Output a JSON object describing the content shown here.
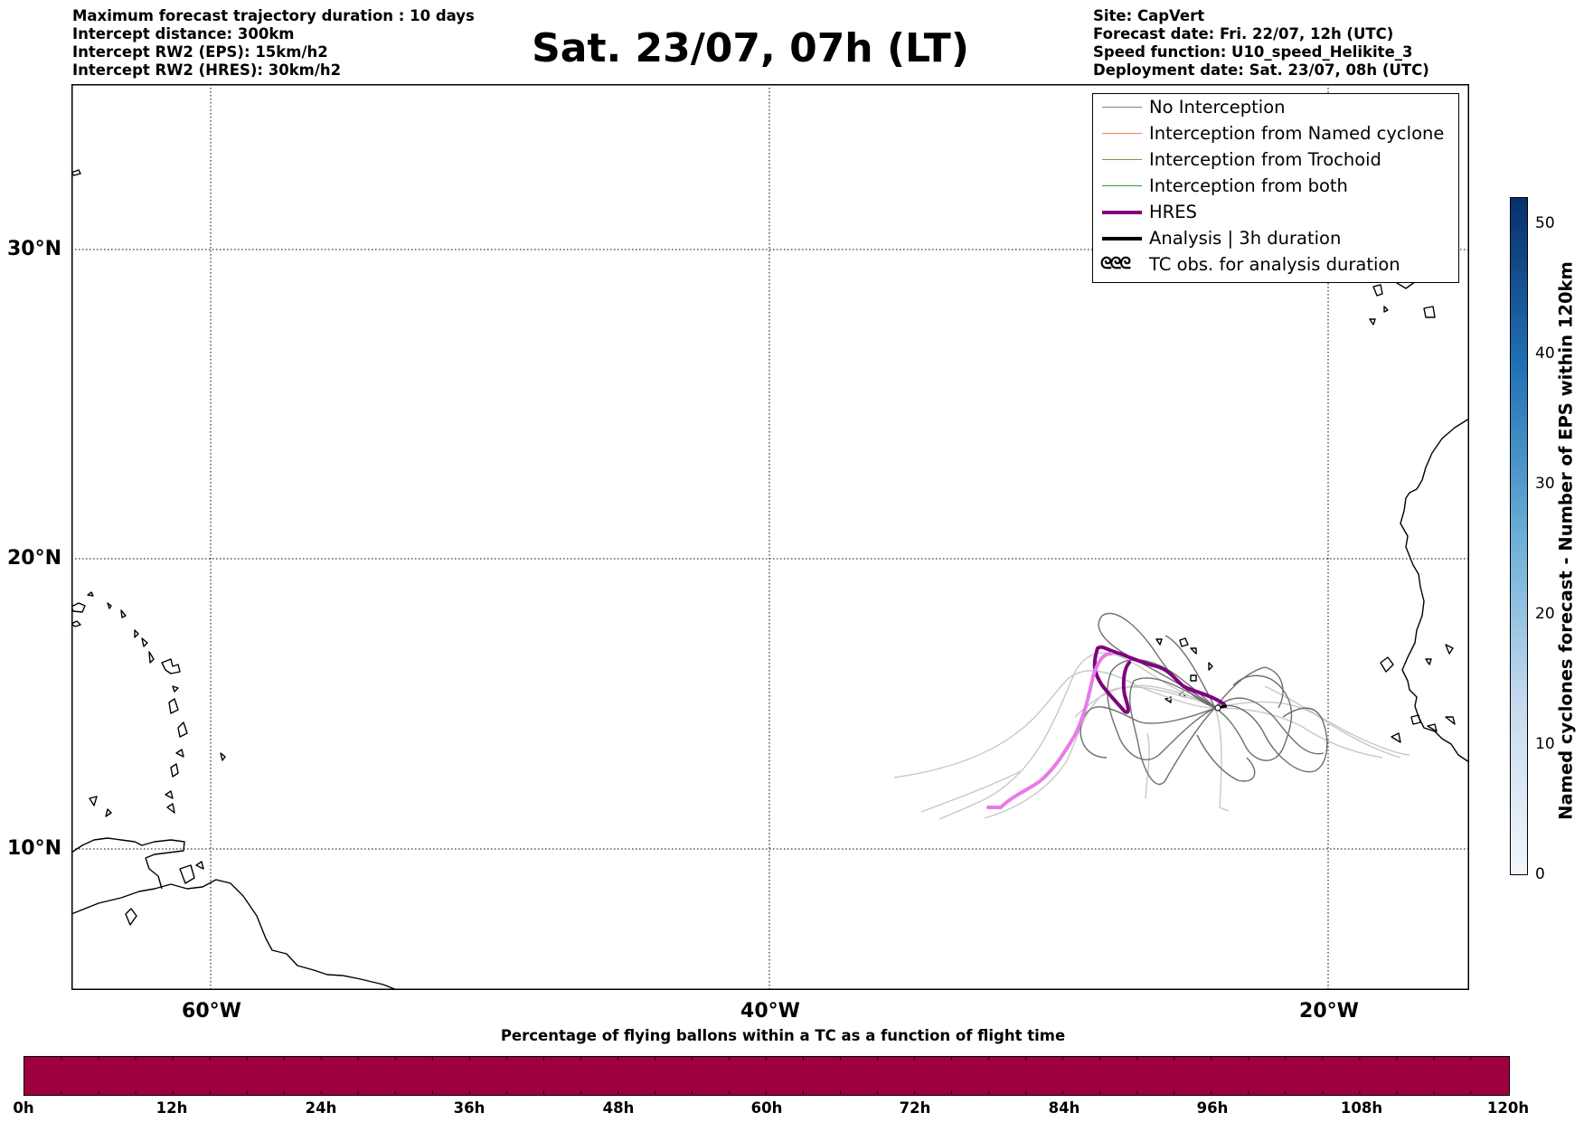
{
  "header_left": [
    "Maximum forecast trajectory duration : 10 days",
    "Intercept distance: 300km",
    "Intercept RW2 (EPS):  15km/h2",
    "Intercept RW2 (HRES): 30km/h2"
  ],
  "header_right": [
    "Site: CapVert",
    "Forecast date: Fri. 22/07, 12h (UTC)",
    "Speed function: U10_speed_Helikite_3",
    "Deployment date: Sat. 23/07, 08h (UTC)"
  ],
  "title": "Sat. 23/07, 07h (LT)",
  "map": {
    "lat_labels": [
      "30°N",
      "20°N",
      "10°N"
    ],
    "lon_labels": [
      "60°W",
      "40°W",
      "20°W"
    ],
    "extent": {
      "lon_min": -65,
      "lon_max": -15,
      "lat_min": 5.5,
      "lat_max": 35
    },
    "gridlines": true
  },
  "legend": [
    {
      "label": "No Interception",
      "color": "#808080",
      "style": "thin"
    },
    {
      "label": "Interception from Named cyclone",
      "color": "#ff7f50",
      "style": "thin"
    },
    {
      "label": "Interception from Trochoid",
      "color": "#9b8b3a",
      "style": "thin"
    },
    {
      "label": "Interception from both",
      "color": "#2ca02c",
      "style": "thin"
    },
    {
      "label": "HRES",
      "color": "#800080",
      "style": "thick"
    },
    {
      "label": "Analysis | 3h duration",
      "color": "#000000",
      "style": "thick"
    },
    {
      "label": "TC obs. for analysis duration",
      "icon": "cyclone-symbols-icon",
      "glyph": "ᘓᘓᘓ"
    }
  ],
  "colorbar": {
    "label": "Named cyclones forecast - Number of EPS within 120km",
    "ticks": [
      "0",
      "10",
      "20",
      "30",
      "40",
      "50"
    ],
    "min": 0,
    "max": 52
  },
  "bottom_bar": {
    "title": "Percentage of flying ballons within a TC as a function of flight time",
    "ticks": [
      "0h",
      "12h",
      "24h",
      "36h",
      "48h",
      "60h",
      "72h",
      "84h",
      "96h",
      "108h",
      "120h"
    ],
    "color": "#9e003d"
  }
}
